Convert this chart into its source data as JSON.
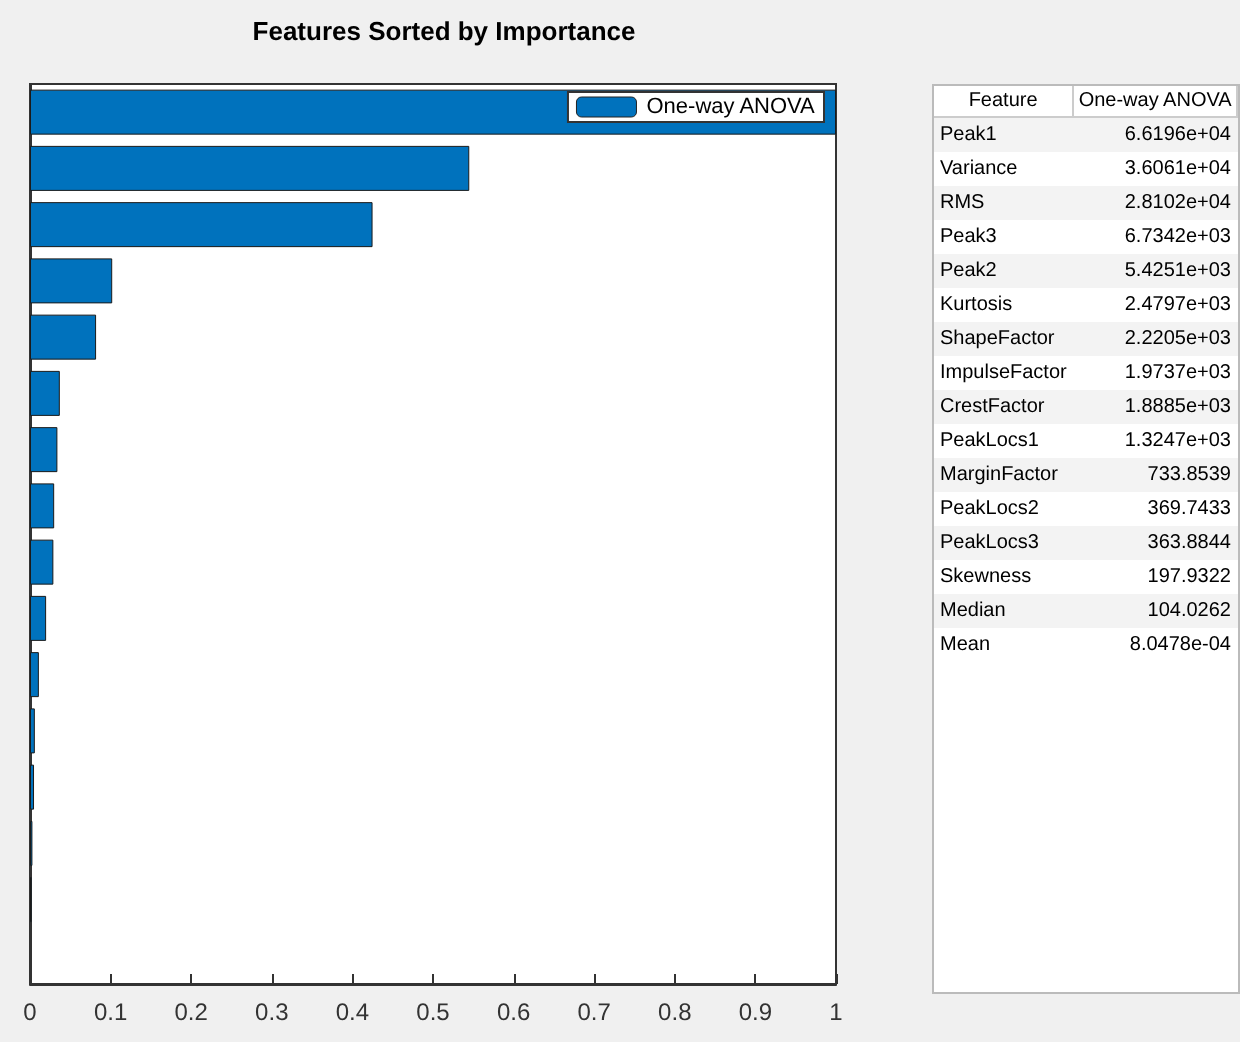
{
  "chart_data": [
    {
      "type": "bar",
      "title": "Features Sorted by Importance",
      "orientation": "horizontal",
      "categories": [
        null,
        null,
        null,
        null,
        null,
        null,
        null,
        null,
        null,
        null,
        null,
        null,
        null,
        null,
        null,
        null
      ],
      "series": [
        {
          "name": "One-way ANOVA",
          "color": "#0072bd",
          "values": [
            1,
            0.545,
            0.425,
            0.102,
            0.082,
            0.037,
            0.034,
            0.03,
            0.029,
            0.02,
            0.011,
            0.006,
            0.005,
            0.003,
            0.002,
            0
          ]
        }
      ],
      "xlim": [
        0,
        1
      ],
      "xticks": [
        0,
        0.1,
        0.2,
        0.3,
        0.4,
        0.5,
        0.6,
        0.7,
        0.8,
        0.9,
        1
      ],
      "legend": "top right",
      "tick_labels": "x"
    },
    {
      "type": "other",
      "xlabel": "Feature",
      "ylabel": "One-way ANOVA",
      "categories": [
        "Peak1",
        "Variance",
        "RMS",
        "Peak3",
        "Peak2",
        "Kurtosis",
        "ShapeFactor",
        "ImpulseFactor",
        "CrestFactor",
        "PeakLocs1",
        "MarginFactor",
        "PeakLocs2",
        "PeakLocs3",
        "Skewness",
        "Median",
        "Mean"
      ],
      "value_labels": [
        "6.6196e+04",
        "3.6061e+04",
        "2.8102e+04",
        "6.7342e+03",
        "5.4251e+03",
        "2.4797e+03",
        "2.2205e+03",
        "1.9737e+03",
        "1.8885e+03",
        "1.3247e+03",
        "733.8539",
        "369.7433",
        "363.8844",
        "197.9322",
        "104.0262",
        "8.0478e-04"
      ]
    }
  ]
}
